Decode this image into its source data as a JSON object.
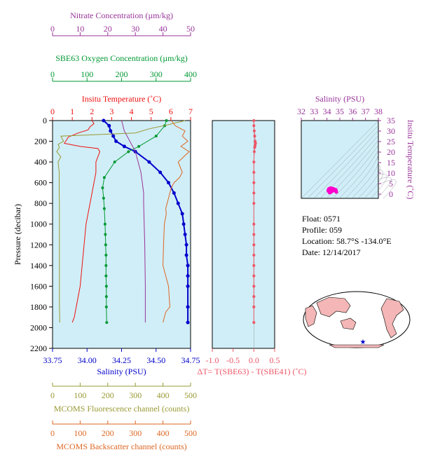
{
  "colors": {
    "nitrate": "#993399",
    "oxygen": "#009933",
    "temperature": "#ee1111",
    "salinity": "#0000cc",
    "fluorescence": "#999933",
    "backscatter": "#dd6622",
    "delta_t": "#ee5566",
    "ts_points": "#ff00cc",
    "panel_bg": "#d0eef7"
  },
  "float_info": {
    "float": "Float:  0571",
    "profile": "Profile:  059",
    "location": "Location:  58.7°S  -134.0°E",
    "date": "Date:  12/14/2017"
  },
  "chart_data": [
    {
      "type": "line",
      "id": "main_profile",
      "ylabel": "Pressure (decibar)",
      "ylim": [
        2200,
        0
      ],
      "y_ticks": [
        0,
        200,
        400,
        600,
        800,
        1000,
        1200,
        1400,
        1600,
        1800,
        2000,
        2200
      ],
      "axes": {
        "nitrate": {
          "label": "Nitrate Concentration (µm/kg)",
          "lim": [
            0,
            50
          ],
          "ticks": [
            0,
            10,
            20,
            30,
            40,
            50
          ]
        },
        "oxygen": {
          "label": "SBE63 Oxygen Concentration (µm/kg)",
          "lim": [
            0,
            400
          ],
          "ticks": [
            0,
            100,
            200,
            300,
            400
          ]
        },
        "temperature": {
          "label": "Insitu Temperature (˚C)",
          "lim": [
            0,
            7
          ],
          "ticks": [
            0,
            1,
            2,
            3,
            4,
            5,
            6,
            7
          ]
        },
        "salinity": {
          "label": "Salinity (PSU)",
          "lim": [
            33.75,
            34.75
          ],
          "ticks": [
            "33.75",
            "34.00",
            "34.25",
            "34.50",
            "34.75"
          ]
        },
        "fluorescence": {
          "label": "MCOMS Fluorescence channel (counts)",
          "lim": [
            0,
            500
          ],
          "ticks": [
            0,
            100,
            200,
            300,
            400,
            500
          ]
        },
        "backscatter": {
          "label": "MCOMS Backscatter channel (counts)",
          "lim": [
            0,
            500
          ],
          "ticks": [
            0,
            100,
            200,
            300,
            400,
            500
          ]
        }
      },
      "series": [
        {
          "key": "temperature",
          "mode": "line",
          "x": [
            2.0,
            2.1,
            1.9,
            1.8,
            1.3,
            0.8,
            0.6,
            1.4,
            2.3,
            2.4,
            2.3,
            2.2,
            2.2,
            2.1,
            2.0,
            1.9,
            1.7,
            1.6,
            1.5,
            1.4,
            1.3,
            1.2,
            1.1,
            1.0
          ],
          "y": [
            0,
            30,
            60,
            90,
            120,
            160,
            220,
            250,
            270,
            300,
            350,
            400,
            500,
            600,
            700,
            800,
            1000,
            1200,
            1400,
            1600,
            1700,
            1800,
            1900,
            1950
          ]
        },
        {
          "key": "salinity",
          "mode": "line_points",
          "x": [
            34.12,
            34.16,
            34.17,
            34.19,
            34.21,
            34.27,
            34.35,
            34.45,
            34.53,
            34.59,
            34.63,
            34.66,
            34.69,
            34.7,
            34.71,
            34.72,
            34.72,
            34.73,
            34.73,
            34.73,
            34.73,
            34.73
          ],
          "y": [
            0,
            50,
            100,
            150,
            200,
            250,
            300,
            400,
            500,
            600,
            700,
            800,
            900,
            1000,
            1100,
            1200,
            1300,
            1400,
            1500,
            1600,
            1800,
            1950
          ]
        },
        {
          "key": "oxygen",
          "mode": "line_points",
          "x": [
            330,
            325,
            300,
            250,
            220,
            180,
            150,
            145,
            148,
            150,
            152,
            153,
            154,
            155,
            155,
            155,
            156,
            156,
            156,
            157
          ],
          "y": [
            0,
            50,
            150,
            250,
            300,
            400,
            550,
            650,
            750,
            850,
            1000,
            1100,
            1200,
            1300,
            1400,
            1500,
            1600,
            1700,
            1800,
            1950
          ]
        },
        {
          "key": "nitrate",
          "mode": "line",
          "x": [
            25,
            25.5,
            26,
            27,
            28,
            29,
            30,
            31,
            32,
            32.5,
            33,
            33,
            33.2,
            33.4,
            33.5,
            33.6,
            33.6
          ],
          "y": [
            0,
            50,
            100,
            150,
            200,
            250,
            300,
            400,
            500,
            600,
            700,
            800,
            1000,
            1200,
            1400,
            1600,
            1950
          ]
        },
        {
          "key": "fluorescence",
          "mode": "line",
          "x": [
            480,
            420,
            350,
            300,
            30,
            35,
            40,
            20,
            25,
            15,
            30,
            20,
            22,
            24,
            24,
            24,
            25,
            25,
            25,
            25,
            25,
            25,
            26,
            26
          ],
          "y": [
            0,
            40,
            80,
            120,
            150,
            175,
            200,
            230,
            260,
            300,
            350,
            400,
            450,
            500,
            600,
            700,
            800,
            1000,
            1200,
            1400,
            1600,
            1800,
            1900,
            1950
          ]
        },
        {
          "key": "backscatter",
          "mode": "line",
          "x": [
            430,
            445,
            480,
            470,
            490,
            465,
            495,
            455,
            470,
            460,
            440,
            430,
            425,
            420,
            415,
            410,
            412,
            405,
            402,
            400,
            420,
            425,
            410,
            400
          ],
          "y": [
            0,
            50,
            100,
            150,
            200,
            250,
            300,
            400,
            500,
            550,
            600,
            650,
            700,
            750,
            800,
            850,
            900,
            1000,
            1200,
            1400,
            1600,
            1800,
            1850,
            1950
          ]
        }
      ]
    },
    {
      "type": "line",
      "id": "delta_t",
      "xlabel": "ΔT= T(SBE63) - T(SBE41) (˚C)",
      "xlim": [
        -1.0,
        0.5
      ],
      "x_ticks": [
        "-1.0",
        "-0.5",
        "0.0",
        "0.5"
      ],
      "ylim": [
        2200,
        0
      ],
      "series": [
        {
          "key": "delta_t",
          "mode": "line_points",
          "x": [
            0,
            0,
            0.01,
            0.02,
            0.03,
            0.04,
            0.03,
            0.02,
            0.01,
            0,
            0,
            0,
            0,
            0,
            0,
            0,
            0,
            0,
            0,
            0,
            0,
            0,
            0,
            0
          ],
          "y": [
            0,
            50,
            100,
            150,
            200,
            220,
            240,
            260,
            300,
            400,
            500,
            600,
            700,
            800,
            1000,
            1100,
            1200,
            1300,
            1400,
            1500,
            1600,
            1700,
            1800,
            1950
          ]
        }
      ]
    },
    {
      "type": "scatter",
      "id": "ts_diagram",
      "xlabel": "Salinity (PSU)",
      "ylabel": "Insitu Temperature (˚C)",
      "xlim": [
        32,
        38
      ],
      "ylim": [
        -2,
        35
      ],
      "x_ticks": [
        32,
        33,
        34,
        35,
        36,
        37,
        38
      ],
      "y_ticks": [
        0,
        5,
        10,
        15,
        20,
        25,
        30,
        35
      ],
      "points": [
        [
          34.1,
          2.0
        ],
        [
          34.15,
          2.1
        ],
        [
          34.2,
          2.3
        ],
        [
          34.25,
          2.4
        ],
        [
          34.3,
          2.4
        ],
        [
          34.35,
          2.3
        ],
        [
          34.4,
          2.2
        ],
        [
          34.45,
          2.1
        ],
        [
          34.5,
          2.0
        ],
        [
          34.55,
          1.9
        ],
        [
          34.6,
          1.7
        ],
        [
          34.65,
          1.5
        ],
        [
          34.7,
          1.3
        ],
        [
          34.72,
          1.1
        ],
        [
          34.73,
          1.0
        ],
        [
          34.68,
          1.6
        ],
        [
          34.58,
          1.8
        ],
        [
          34.4,
          1.4
        ],
        [
          34.3,
          0.9
        ],
        [
          34.2,
          0.7
        ],
        [
          34.1,
          1.5
        ],
        [
          34.16,
          2.6
        ],
        [
          34.28,
          2.9
        ],
        [
          34.42,
          2.7
        ],
        [
          34.52,
          2.5
        ],
        [
          34.62,
          2.2
        ],
        [
          34.7,
          2.0
        ]
      ]
    }
  ]
}
